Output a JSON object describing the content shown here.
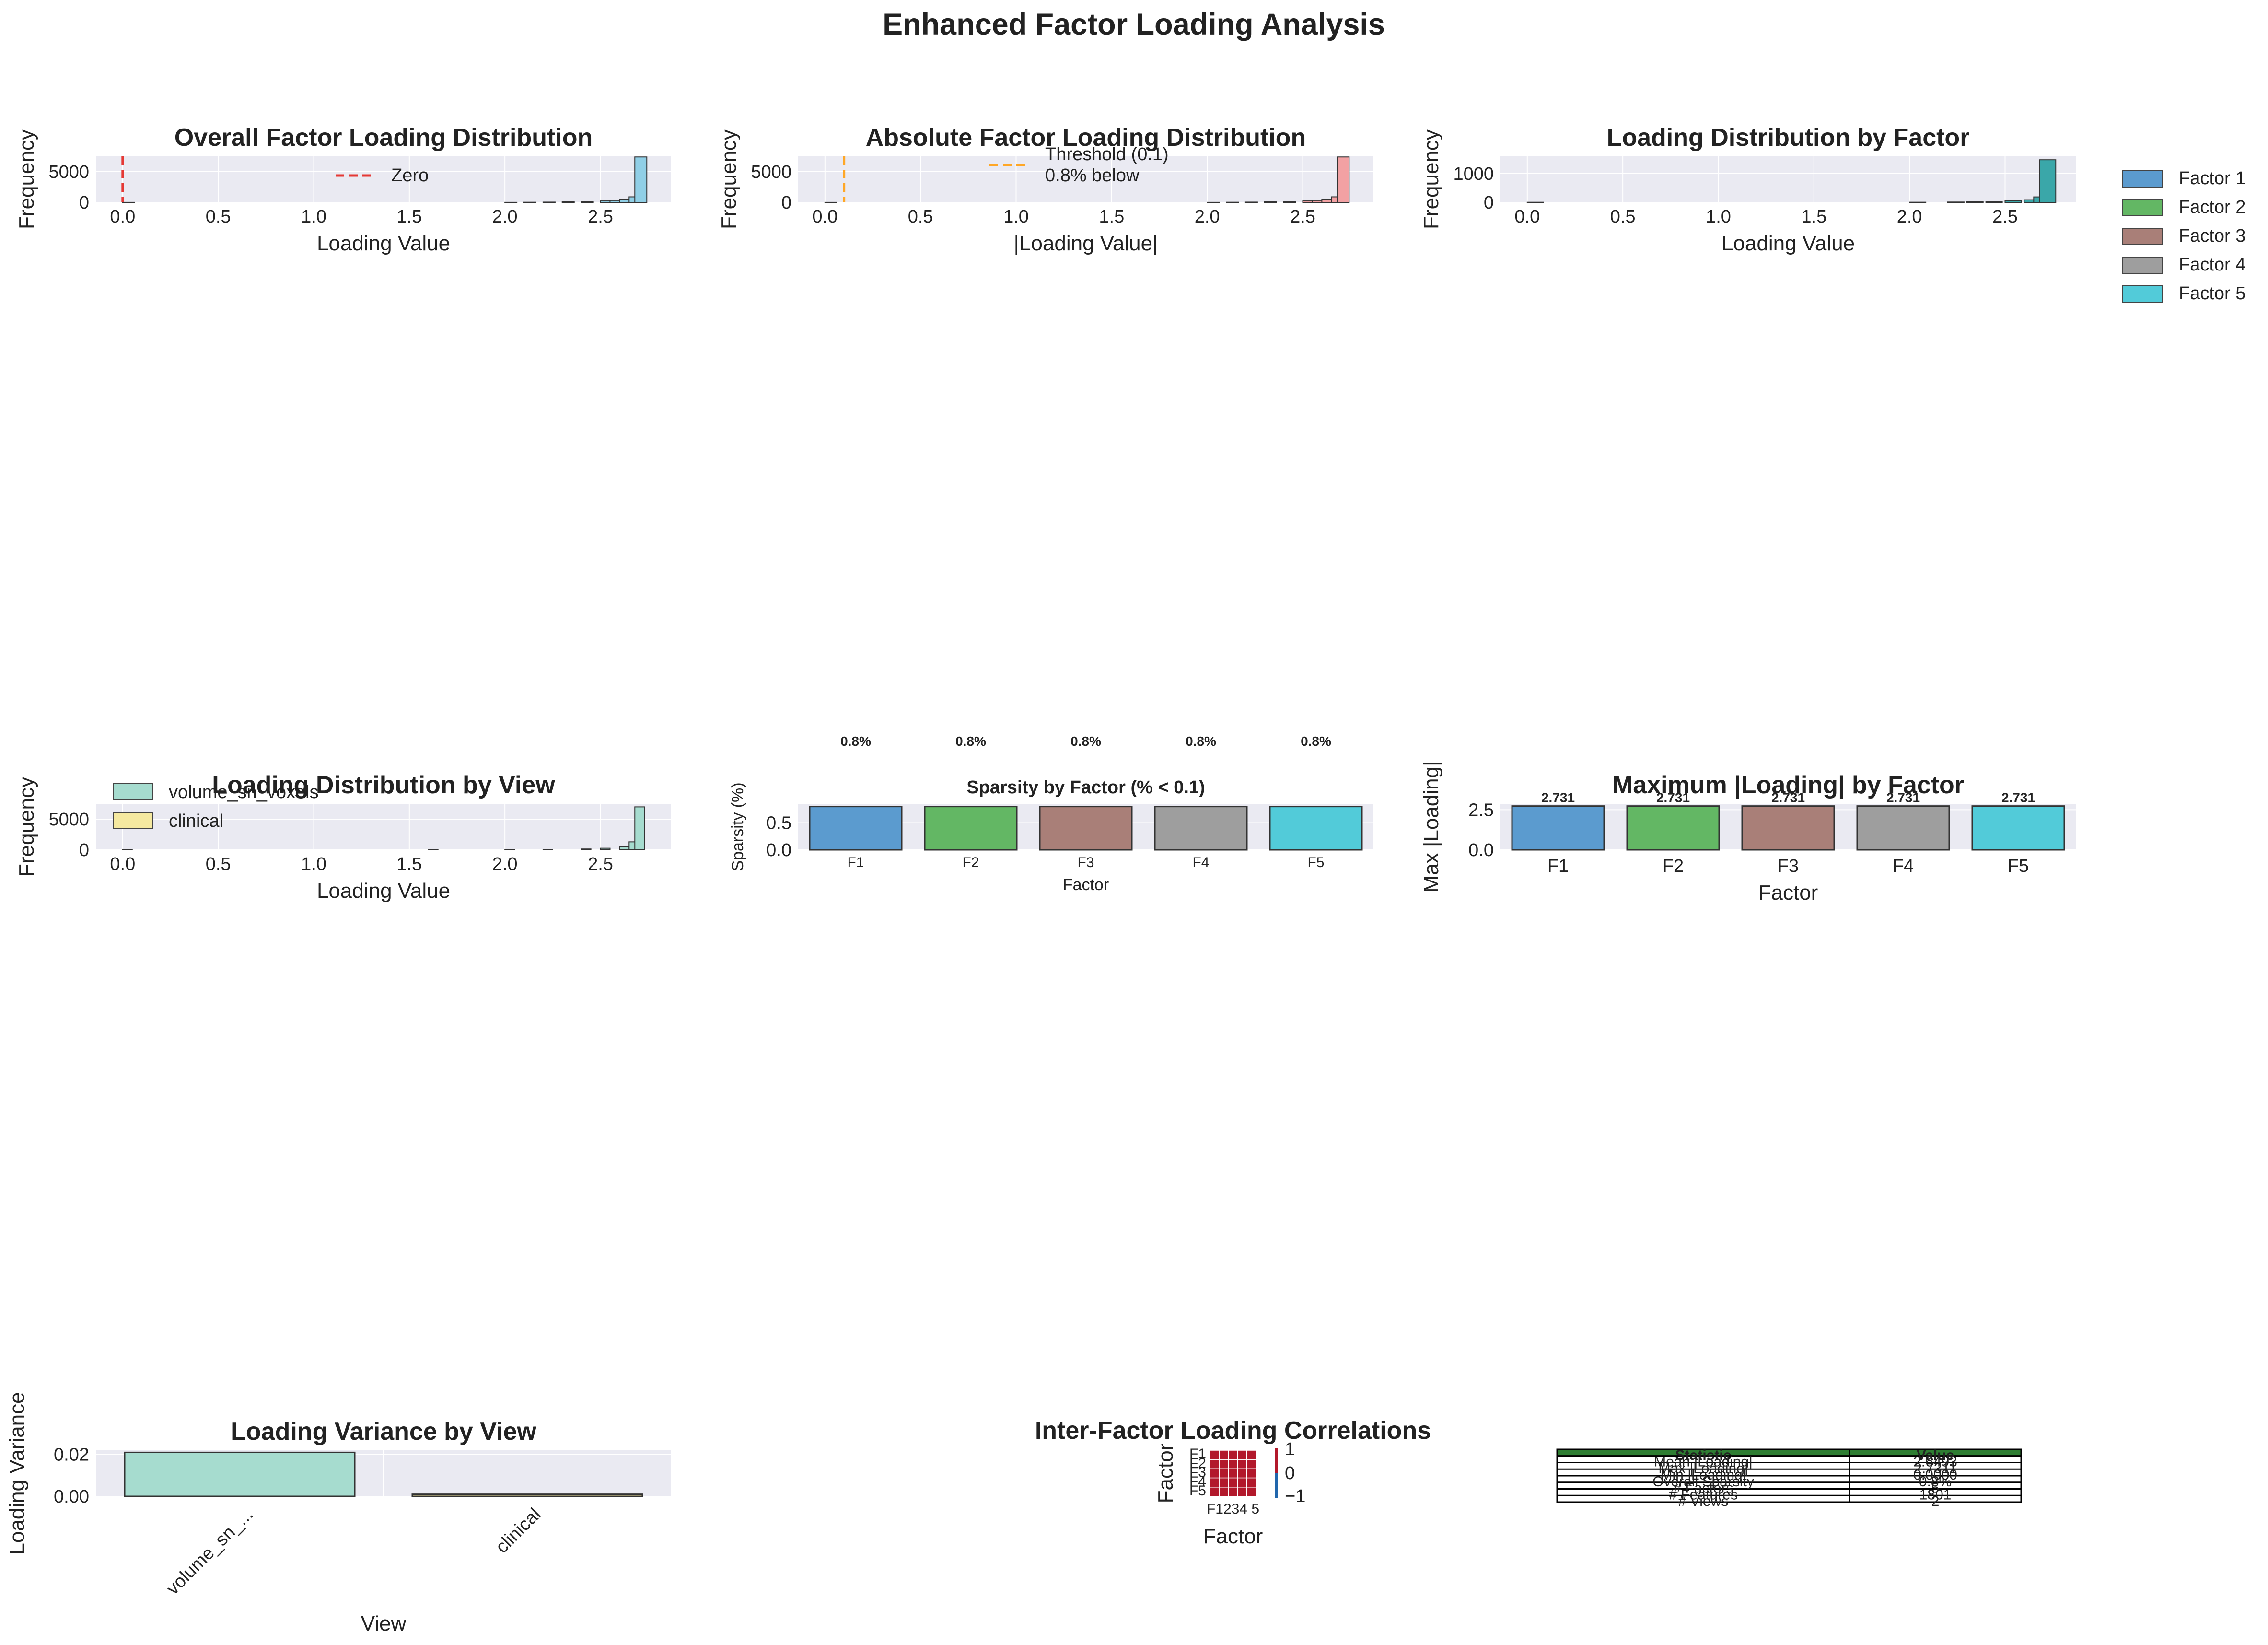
{
  "suptitle": "Enhanced Factor Loading Analysis",
  "colors": {
    "axes_bg": "#eaeaf2",
    "grid": "#ffffff",
    "factor": [
      "#5b9bcf",
      "#63b764",
      "#a97f78",
      "#9e9e9e",
      "#52cbd9"
    ],
    "hist_overall": "#90cfe6",
    "hist_abs": "#f2a1a3",
    "view_volume": "#a6dccf",
    "view_clinical": "#f5e9a0",
    "zero_line": "#e53935",
    "threshold_line": "#ffa726",
    "table_header": "#2e7d32"
  },
  "chart_data": [
    {
      "id": "overall",
      "type": "bar",
      "title": "Overall Factor Loading Distribution",
      "xlabel": "Loading Value",
      "ylabel": "Frequency",
      "xlim": [
        -0.14,
        2.87
      ],
      "ylim": [
        0,
        7500
      ],
      "xticks": [
        "0.0",
        "0.5",
        "1.0",
        "1.5",
        "2.0",
        "2.5"
      ],
      "xtick_values": [
        0,
        0.5,
        1,
        1.5,
        2,
        2.5
      ],
      "yticks": [
        "0",
        "5000"
      ],
      "ytick_values": [
        0,
        5000
      ],
      "bins": [
        [
          0.0,
          8
        ],
        [
          2.0,
          10
        ],
        [
          2.1,
          25
        ],
        [
          2.2,
          45
        ],
        [
          2.3,
          80
        ],
        [
          2.4,
          140
        ],
        [
          2.5,
          230
        ],
        [
          2.55,
          320
        ],
        [
          2.6,
          480
        ],
        [
          2.65,
          900
        ],
        [
          2.68,
          7400
        ]
      ],
      "legend": [
        {
          "label": "Zero",
          "style": "dashed"
        }
      ],
      "legend_position": "upper-center",
      "vline": 0.0
    },
    {
      "id": "absolute",
      "type": "bar",
      "title": "Absolute Factor Loading Distribution",
      "xlabel": "|Loading Value|",
      "ylabel": "Frequency",
      "xlim": [
        -0.14,
        2.87
      ],
      "ylim": [
        0,
        7500
      ],
      "xticks": [
        "0.0",
        "0.5",
        "1.0",
        "1.5",
        "2.0",
        "2.5"
      ],
      "xtick_values": [
        0,
        0.5,
        1,
        1.5,
        2,
        2.5
      ],
      "yticks": [
        "0",
        "5000"
      ],
      "ytick_values": [
        0,
        5000
      ],
      "bins": [
        [
          0.0,
          8
        ],
        [
          2.0,
          10
        ],
        [
          2.1,
          25
        ],
        [
          2.2,
          45
        ],
        [
          2.3,
          80
        ],
        [
          2.4,
          140
        ],
        [
          2.5,
          230
        ],
        [
          2.55,
          320
        ],
        [
          2.6,
          480
        ],
        [
          2.65,
          900
        ],
        [
          2.68,
          7400
        ]
      ],
      "legend": [
        {
          "label": "Threshold (0.1)",
          "style": "dashed"
        },
        {
          "label": "0.8% below",
          "style": "none"
        }
      ],
      "legend_position": "upper-center",
      "vline": 0.1
    },
    {
      "id": "by_factor",
      "type": "bar",
      "title": "Loading Distribution by Factor",
      "xlabel": "Loading Value",
      "ylabel": "Frequency",
      "xlim": [
        -0.14,
        2.87
      ],
      "ylim": [
        0,
        1600
      ],
      "xticks": [
        "0.0",
        "0.5",
        "1.0",
        "1.5",
        "2.0",
        "2.5"
      ],
      "xtick_values": [
        0,
        0.5,
        1,
        1.5,
        2,
        2.5
      ],
      "yticks": [
        "0",
        "1000"
      ],
      "ytick_values": [
        0,
        1000
      ],
      "bins": [
        [
          0.0,
          5
        ],
        [
          2.0,
          6
        ],
        [
          2.2,
          12
        ],
        [
          2.3,
          20
        ],
        [
          2.4,
          30
        ],
        [
          2.5,
          50
        ],
        [
          2.6,
          90
        ],
        [
          2.65,
          190
        ],
        [
          2.68,
          1480
        ]
      ],
      "legend": [
        {
          "label": "Factor 1"
        },
        {
          "label": "Factor 2"
        },
        {
          "label": "Factor 3"
        },
        {
          "label": "Factor 4"
        },
        {
          "label": "Factor 5"
        }
      ],
      "legend_position": "outside-right"
    },
    {
      "id": "by_view",
      "type": "bar",
      "title": "Loading Distribution by View",
      "xlabel": "Loading Value",
      "ylabel": "Frequency",
      "xlim": [
        -0.14,
        2.87
      ],
      "ylim": [
        0,
        7500
      ],
      "xticks": [
        "0.0",
        "0.5",
        "1.0",
        "1.5",
        "2.0",
        "2.5"
      ],
      "xtick_values": [
        0,
        0.5,
        1,
        1.5,
        2,
        2.5
      ],
      "yticks": [
        "0",
        "5000"
      ],
      "ytick_values": [
        0,
        5000
      ],
      "bins": [
        [
          0.0,
          40
        ],
        [
          1.6,
          10
        ],
        [
          2.0,
          25
        ],
        [
          2.2,
          60
        ],
        [
          2.4,
          140
        ],
        [
          2.5,
          260
        ],
        [
          2.6,
          500
        ],
        [
          2.65,
          1300
        ],
        [
          2.68,
          7000
        ]
      ],
      "legend": [
        {
          "label": "volume_sn_voxels"
        },
        {
          "label": "clinical"
        }
      ],
      "legend_position": "upper-left"
    },
    {
      "id": "sparsity",
      "type": "bar",
      "title": "Sparsity by Factor (% < 0.1)",
      "xlabel": "Factor",
      "ylabel": "Sparsity (%)",
      "categories": [
        "F1",
        "F2",
        "F3",
        "F4",
        "F5"
      ],
      "values": [
        0.8,
        0.8,
        0.8,
        0.8,
        0.8
      ],
      "value_labels": [
        "0.8%",
        "0.8%",
        "0.8%",
        "0.8%",
        "0.8%"
      ],
      "ylim": [
        0,
        0.85
      ],
      "yticks": [
        "0.0",
        "0.5"
      ],
      "ytick_values": [
        0,
        0.5
      ]
    },
    {
      "id": "max_loading",
      "type": "bar",
      "title": "Maximum |Loading| by Factor",
      "xlabel": "Factor",
      "ylabel": "Max |Loading|",
      "categories": [
        "F1",
        "F2",
        "F3",
        "F4",
        "F5"
      ],
      "values": [
        2.731,
        2.731,
        2.731,
        2.731,
        2.731
      ],
      "value_labels": [
        "2.731",
        "2.731",
        "2.731",
        "2.731",
        "2.731"
      ],
      "ylim": [
        0,
        2.87
      ],
      "yticks": [
        "0.0",
        "2.5"
      ],
      "ytick_values": [
        0,
        2.5
      ]
    },
    {
      "id": "variance",
      "type": "bar",
      "title": "Loading Variance by View",
      "xlabel": "View",
      "ylabel": "Loading Variance",
      "categories": [
        "volume_sn_...",
        "clinical"
      ],
      "values": [
        0.021,
        0.001
      ],
      "ylim": [
        0,
        0.022
      ],
      "yticks": [
        "0.00",
        "0.02"
      ],
      "ytick_values": [
        0,
        0.02
      ]
    },
    {
      "id": "correlation",
      "type": "heatmap",
      "title": "Inter-Factor Loading Correlations",
      "xlabel": "Factor",
      "ylabel": "Factor",
      "labels": [
        "F1",
        "F2",
        "F3",
        "F4",
        "F5"
      ],
      "matrix": [
        [
          1,
          1,
          1,
          1,
          1
        ],
        [
          1,
          1,
          1,
          1,
          1
        ],
        [
          1,
          1,
          1,
          1,
          1
        ],
        [
          1,
          1,
          1,
          1,
          1
        ],
        [
          1,
          1,
          1,
          1,
          1
        ]
      ],
      "colorbar_ticks": [
        "1",
        "0",
        "−1"
      ],
      "x_tick_text": "F1234 5"
    },
    {
      "id": "summary",
      "type": "table",
      "header": [
        "Statistic",
        "Value"
      ],
      "rows": [
        [
          "Mean |Loading|",
          "2.6493"
        ],
        [
          "Max |Loading|",
          "2.7311"
        ],
        [
          "Min |Loading|",
          "0.0000"
        ],
        [
          "Overall Sparsity",
          "0.8%"
        ],
        [
          "# Factors",
          "5"
        ],
        [
          "# Features",
          "1801"
        ],
        [
          "# Views",
          "2"
        ]
      ]
    }
  ]
}
